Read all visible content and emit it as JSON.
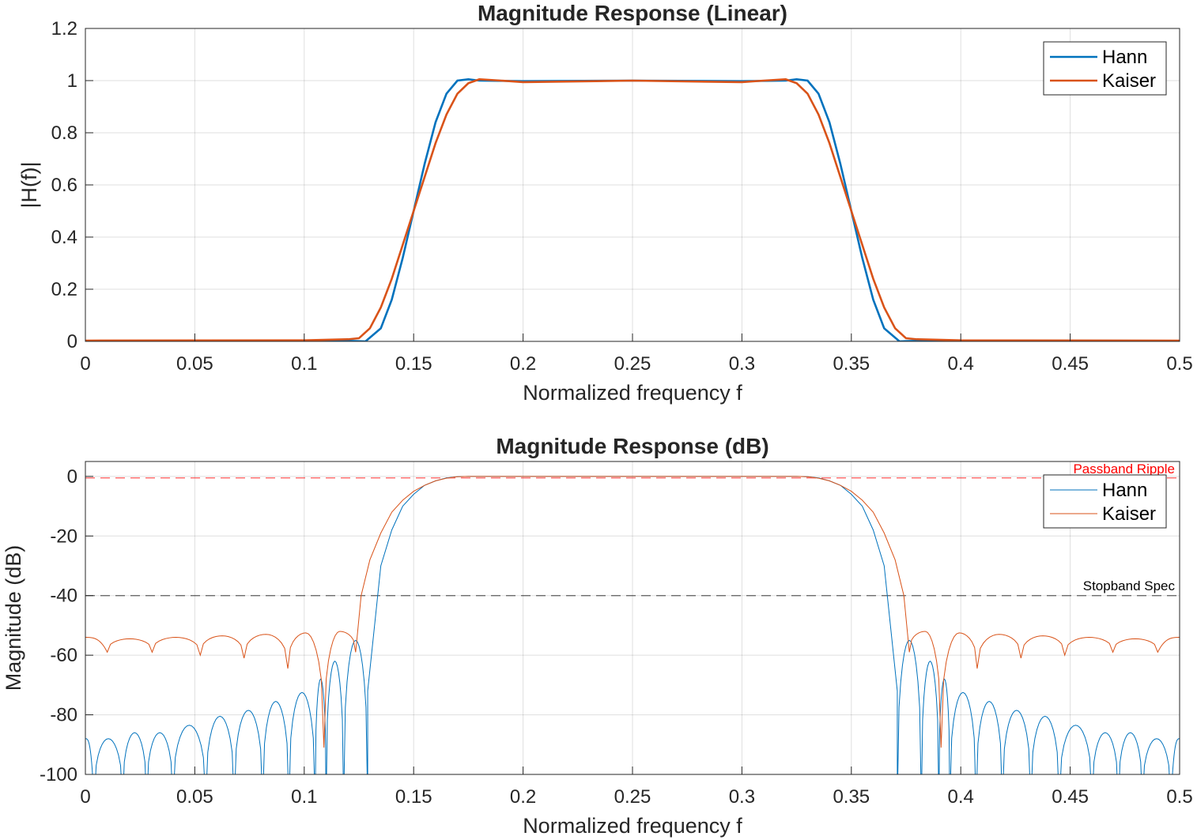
{
  "chart_data": [
    {
      "type": "line",
      "title": "Magnitude Response (Linear)",
      "xlabel": "Normalized frequency f",
      "ylabel": "|H(f)|",
      "xlim": [
        0,
        0.5
      ],
      "ylim": [
        0,
        1.2
      ],
      "xticks": [
        "0",
        "0.05",
        "0.1",
        "0.15",
        "0.2",
        "0.25",
        "0.3",
        "0.35",
        "0.4",
        "0.45",
        "0.5"
      ],
      "yticks": [
        "0",
        "0.2",
        "0.4",
        "0.6",
        "0.8",
        "1",
        "1.2"
      ],
      "grid": true,
      "legend": "top-right",
      "series": [
        {
          "name": "Hann",
          "color": "#0072BD",
          "x": [
            0,
            0.1,
            0.12,
            0.128,
            0.135,
            0.14,
            0.145,
            0.15,
            0.155,
            0.16,
            0.165,
            0.17,
            0.175,
            0.18,
            0.2,
            0.25,
            0.3,
            0.32,
            0.325,
            0.33,
            0.335,
            0.34,
            0.345,
            0.35,
            0.355,
            0.36,
            0.365,
            0.372,
            0.38,
            0.4,
            0.5
          ],
          "y": [
            0.002,
            0.003,
            0.002,
            0.0,
            0.05,
            0.16,
            0.32,
            0.5,
            0.68,
            0.84,
            0.95,
            1.0,
            1.005,
            1.0,
            0.998,
            1.0,
            0.998,
            1.0,
            1.005,
            1.0,
            0.95,
            0.84,
            0.68,
            0.5,
            0.32,
            0.16,
            0.05,
            0.0,
            0.002,
            0.003,
            0.002
          ]
        },
        {
          "name": "Kaiser",
          "color": "#D95319",
          "x": [
            0,
            0.1,
            0.12,
            0.125,
            0.13,
            0.135,
            0.14,
            0.145,
            0.15,
            0.155,
            0.16,
            0.165,
            0.17,
            0.175,
            0.18,
            0.19,
            0.2,
            0.25,
            0.3,
            0.31,
            0.32,
            0.325,
            0.33,
            0.335,
            0.34,
            0.345,
            0.35,
            0.355,
            0.36,
            0.365,
            0.37,
            0.375,
            0.38,
            0.4,
            0.5
          ],
          "y": [
            0.003,
            0.004,
            0.008,
            0.012,
            0.05,
            0.13,
            0.24,
            0.37,
            0.5,
            0.63,
            0.76,
            0.87,
            0.95,
            0.99,
            1.005,
            1.0,
            0.994,
            1.0,
            0.994,
            1.0,
            1.005,
            0.99,
            0.95,
            0.87,
            0.76,
            0.63,
            0.5,
            0.37,
            0.24,
            0.13,
            0.05,
            0.012,
            0.008,
            0.004,
            0.003
          ]
        }
      ]
    },
    {
      "type": "line",
      "title": "Magnitude Response (dB)",
      "xlabel": "Normalized frequency f",
      "ylabel": "Magnitude (dB)",
      "xlim": [
        0,
        0.5
      ],
      "ylim": [
        -100,
        5
      ],
      "xticks": [
        "0",
        "0.05",
        "0.1",
        "0.15",
        "0.2",
        "0.25",
        "0.3",
        "0.35",
        "0.4",
        "0.45",
        "0.5"
      ],
      "yticks": [
        "-100",
        "-80",
        "-60",
        "-40",
        "-20",
        "0"
      ],
      "grid": true,
      "legend": "top-right",
      "reference_lines": [
        {
          "label": "Passband Ripple",
          "y": -0.5,
          "color": "#FF0000",
          "style": "dashed"
        },
        {
          "label": "Stopband Spec",
          "y": -40,
          "color": "#000000",
          "style": "dashed"
        }
      ],
      "series": [
        {
          "name": "Hann",
          "color": "#0072BD",
          "lobes": [
            {
              "x": 0.005,
              "y": -88
            },
            {
              "x": 0.0145,
              "y": -88
            },
            {
              "x": 0.027,
              "y": -86
            },
            {
              "x": 0.0375,
              "y": -86
            },
            {
              "x": 0.0475,
              "y": -83.5
            },
            {
              "x": 0.0595,
              "y": -80.5
            },
            {
              "x": 0.0685,
              "y": -78.5
            },
            {
              "x": 0.0785,
              "y": -75.5
            },
            {
              "x": 0.0875,
              "y": -72.5
            },
            {
              "x": 0.0985,
              "y": -68
            },
            {
              "x": 0.1095,
              "y": -62
            },
            {
              "x": 0.113,
              "y": -55
            },
            {
              "x": 0.1225,
              "y": -44
            }
          ],
          "nulls_x": [
            0.004,
            0.017,
            0.028,
            0.04,
            0.055,
            0.068,
            0.081,
            0.093,
            0.105,
            0.11,
            0.118,
            0.129
          ],
          "transition_x": [
            0.129,
            0.135,
            0.14,
            0.145,
            0.15,
            0.155,
            0.16,
            0.165,
            0.17,
            0.175
          ],
          "transition_y": [
            -72,
            -30,
            -18,
            -10,
            -6,
            -3,
            -1.5,
            -0.5,
            -0.1,
            0
          ]
        },
        {
          "name": "Kaiser",
          "color": "#D95319",
          "lobes": [
            {
              "x": 0.005,
              "y": -54
            },
            {
              "x": 0.0145,
              "y": -54.5
            },
            {
              "x": 0.0235,
              "y": -54
            },
            {
              "x": 0.0335,
              "y": -53.5
            },
            {
              "x": 0.0435,
              "y": -53
            },
            {
              "x": 0.0535,
              "y": -52.5
            },
            {
              "x": 0.0635,
              "y": -52
            },
            {
              "x": 0.0735,
              "y": -51
            },
            {
              "x": 0.0835,
              "y": -49
            },
            {
              "x": 0.1015,
              "y": -47
            },
            {
              "x": 0.1155,
              "y": -42
            }
          ],
          "nulls_x": [
            0.01,
            0.0305,
            0.0525,
            0.0725,
            0.0925,
            0.109,
            0.1235
          ],
          "null_depths": [
            -59,
            -59,
            -60,
            -61,
            -64.5,
            -91,
            -59
          ],
          "transition_x": [
            0.1235,
            0.126,
            0.13,
            0.135,
            0.14,
            0.145,
            0.15,
            0.155,
            0.16,
            0.165,
            0.17,
            0.175
          ],
          "transition_y": [
            -59,
            -40,
            -28,
            -19,
            -12,
            -8,
            -5,
            -3,
            -1.5,
            -0.6,
            -0.1,
            0
          ]
        }
      ]
    }
  ]
}
